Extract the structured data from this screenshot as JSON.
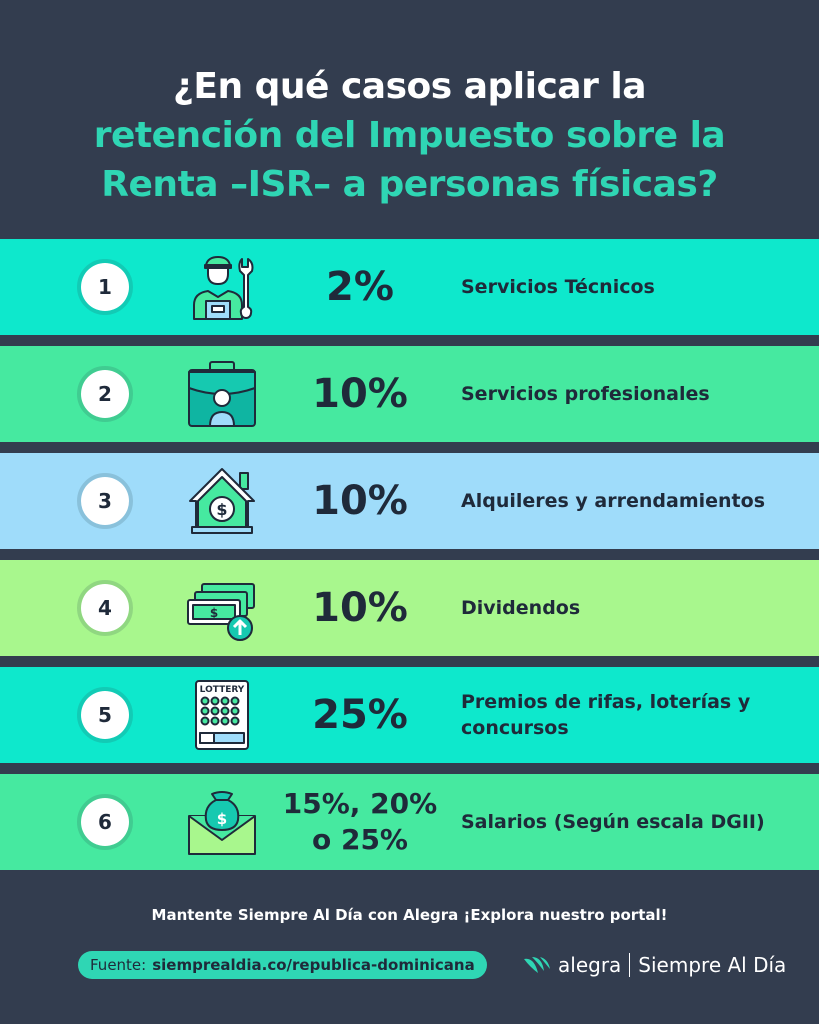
{
  "header": {
    "line1": "¿En qué casos aplicar la",
    "line2": "retención del Impuesto sobre la",
    "line3": "Renta –ISR– a personas físicas?"
  },
  "rows": [
    {
      "number": "1",
      "percent": "2%",
      "label": "Servicios Técnicos",
      "color": "#0ee8cc",
      "icon": "technician-icon"
    },
    {
      "number": "2",
      "percent": "10%",
      "label": "Servicios profesionales",
      "color": "#46e9a0",
      "icon": "briefcase-professional-icon"
    },
    {
      "number": "3",
      "percent": "10%",
      "label": "Alquileres y arrendamientos",
      "color": "#9fdcfa",
      "icon": "house-money-icon"
    },
    {
      "number": "4",
      "percent": "10%",
      "label": "Dividendos",
      "color": "#a8f78d",
      "icon": "money-up-icon"
    },
    {
      "number": "5",
      "percent": "25%",
      "label": "Premios de rifas, loterías y concursos",
      "color": "#0ee8cc",
      "icon": "lottery-ticket-icon"
    },
    {
      "number": "6",
      "percent_line1": "15%, 20%",
      "percent_line2": "o 25%",
      "label": "Salarios (Según escala DGII)",
      "color": "#46e9a0",
      "icon": "salary-envelope-icon"
    }
  ],
  "footer": {
    "cta": "Mantente Siempre Al Día con Alegra ¡Explora nuestro portal!",
    "source_prefix": "Fuente:",
    "source_url": "siemprealdia.co/republica-dominicana",
    "brand_name": "alegra",
    "brand_tagline": "Siempre Al Día"
  }
}
